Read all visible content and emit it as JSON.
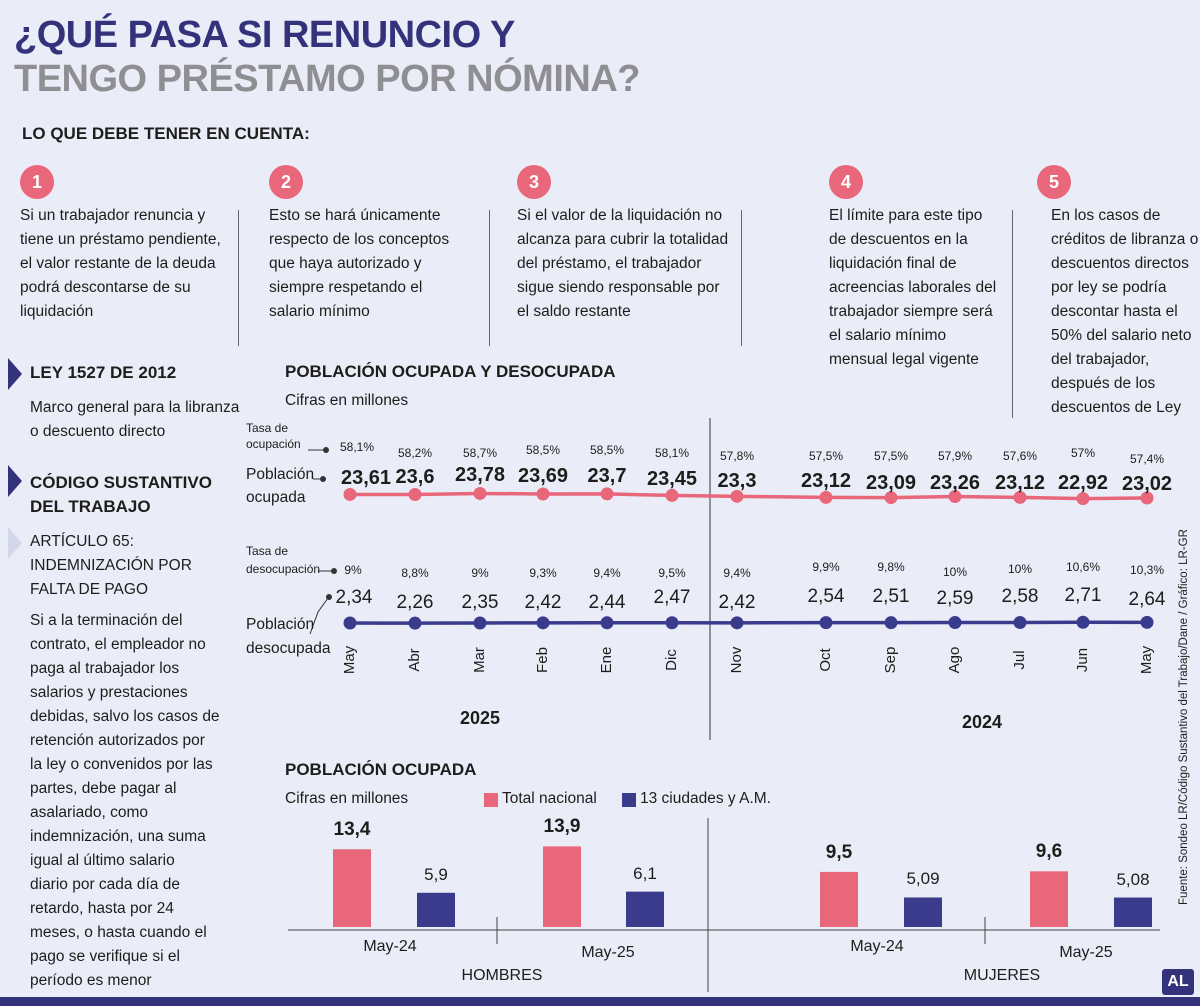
{
  "title": {
    "line1": "¿QUÉ PASA SI RENUNCIO Y",
    "line2": "TENGO PRÉSTAMO POR NÓMINA?"
  },
  "subheading": "LO QUE DEBE TENER EN CUENTA:",
  "points": [
    {
      "num": "1",
      "lines": [
        "Si un trabajador renuncia y",
        "tiene un préstamo pendiente,",
        "el valor restante de la deuda",
        "podrá descontarse de su",
        "liquidación"
      ]
    },
    {
      "num": "2",
      "lines": [
        "Esto se hará únicamente",
        "respecto de los conceptos",
        "que haya autorizado y",
        "siempre respetando el",
        "salario mínimo"
      ]
    },
    {
      "num": "3",
      "lines": [
        "Si el valor de la liquidación no",
        "alcanza para cubrir la totalidad",
        "del préstamo, el trabajador",
        "sigue siendo responsable por",
        "el saldo restante"
      ]
    },
    {
      "num": "4",
      "lines": [
        "El límite para este tipo",
        "de descuentos en la",
        "liquidación final de",
        "acreencias laborales del",
        "trabajador siempre será",
        "el salario mínimo",
        "mensual legal vigente"
      ]
    },
    {
      "num": "5",
      "lines": [
        "En los casos de",
        "créditos de libranza o",
        "descuentos directos",
        "por ley se podría",
        "descontar hasta el",
        "50% del salario neto",
        "del trabajador,",
        "después de los",
        "descuentos de Ley"
      ]
    }
  ],
  "sidebar": {
    "ley_title": "LEY 1527 DE 2012",
    "ley_text": [
      "Marco general para la libranza",
      "o descuento directo"
    ],
    "codigo_title": [
      "CÓDIGO SUSTANTIVO",
      "DEL TRABAJO"
    ],
    "articulo_title": [
      "ARTÍCULO 65:",
      "INDEMNIZACIÓN POR",
      "FALTA DE PAGO"
    ],
    "articulo_text": [
      "Si a la terminación del",
      "contrato, el empleador no",
      "paga al trabajador los",
      "salarios y prestaciones",
      "debidas, salvo los casos de",
      "retención autorizados por",
      "la ley o convenidos por las",
      "partes, debe pagar al",
      "asalariado, como",
      "indemnización, una suma",
      "igual al último salario",
      "diario por cada día de",
      "retardo, hasta por 24",
      "meses, o hasta cuando el",
      "pago se verifique si el",
      "período es menor"
    ]
  },
  "source": "Fuente: Sondeo LR/Código Sustantivo del Trabajo/Dane / Gráfico: LR-GR",
  "logo": "AL",
  "colors": {
    "pink": "#e8677a",
    "navy": "#3b3b8e",
    "title_navy": "#33327a",
    "title_gray": "#8e8e93"
  },
  "chart_data": [
    {
      "type": "line",
      "title": "POBLACIÓN OCUPADA Y DESOCUPADA",
      "subtitle": "Cifras en millones",
      "categories": [
        "May",
        "Abr",
        "Mar",
        "Feb",
        "Ene",
        "Dic",
        "Nov",
        "Oct",
        "Sep",
        "Ago",
        "Jul",
        "Jun",
        "May"
      ],
      "year_labels": [
        "2025",
        "2024"
      ],
      "labels": {
        "tasa_ocupacion": [
          "Tasa de",
          "ocupación"
        ],
        "poblacion_ocupada": [
          "Población",
          "ocupada"
        ],
        "tasa_desocupacion": [
          "Tasa de",
          "desocupación"
        ],
        "poblacion_desocupada": [
          "Población",
          "desocupada"
        ]
      },
      "series": [
        {
          "name": "Población ocupada",
          "color": "#e8677a",
          "values": [
            23.61,
            23.6,
            23.78,
            23.69,
            23.7,
            23.45,
            23.3,
            23.12,
            23.09,
            23.26,
            23.12,
            22.92,
            23.02
          ],
          "value_labels": [
            "23,61",
            "23,6",
            "23,78",
            "23,69",
            "23,7",
            "23,45",
            "23,3",
            "23,12",
            "23,09",
            "23,26",
            "23,12",
            "22,92",
            "23,02"
          ],
          "rate_labels": [
            "58,1%",
            "58,2%",
            "58,7%",
            "58,5%",
            "58,5%",
            "58,1%",
            "57,8%",
            "57,5%",
            "57,5%",
            "57,9%",
            "57,6%",
            "57%",
            "57,4%"
          ]
        },
        {
          "name": "Población desocupada",
          "color": "#3b3b8e",
          "values": [
            2.34,
            2.26,
            2.35,
            2.42,
            2.44,
            2.47,
            2.42,
            2.54,
            2.51,
            2.59,
            2.58,
            2.71,
            2.64
          ],
          "value_labels": [
            "2,34",
            "2,26",
            "2,35",
            "2,42",
            "2,44",
            "2,47",
            "2,42",
            "2,54",
            "2,51",
            "2,59",
            "2,58",
            "2,71",
            "2,64"
          ],
          "rate_labels": [
            "9%",
            "8,8%",
            "9%",
            "9,3%",
            "9,4%",
            "9,5%",
            "9,4%",
            "9,9%",
            "9,8%",
            "10%",
            "10%",
            "10,6%",
            "10,3%"
          ]
        }
      ]
    },
    {
      "type": "bar",
      "title": "POBLACIÓN OCUPADA",
      "subtitle": "Cifras en millones",
      "legend": [
        {
          "name": "Total nacional",
          "color": "#e8677a"
        },
        {
          "name": "13 ciudades y A.M.",
          "color": "#3b3b8e"
        }
      ],
      "groups": [
        {
          "label": "HOMBRES",
          "periods": [
            {
              "label": "May-24",
              "values": [
                13.4,
                5.9
              ],
              "value_labels": [
                "13,4",
                "5,9"
              ]
            },
            {
              "label": "May-25",
              "values": [
                13.9,
                6.1
              ],
              "value_labels": [
                "13,9",
                "6,1"
              ]
            }
          ]
        },
        {
          "label": "MUJERES",
          "periods": [
            {
              "label": "May-24",
              "values": [
                9.5,
                5.09
              ],
              "value_labels": [
                "9,5",
                "5,09"
              ]
            },
            {
              "label": "May-25",
              "values": [
                9.6,
                5.08
              ],
              "value_labels": [
                "9,6",
                "5,08"
              ]
            }
          ]
        }
      ]
    }
  ]
}
